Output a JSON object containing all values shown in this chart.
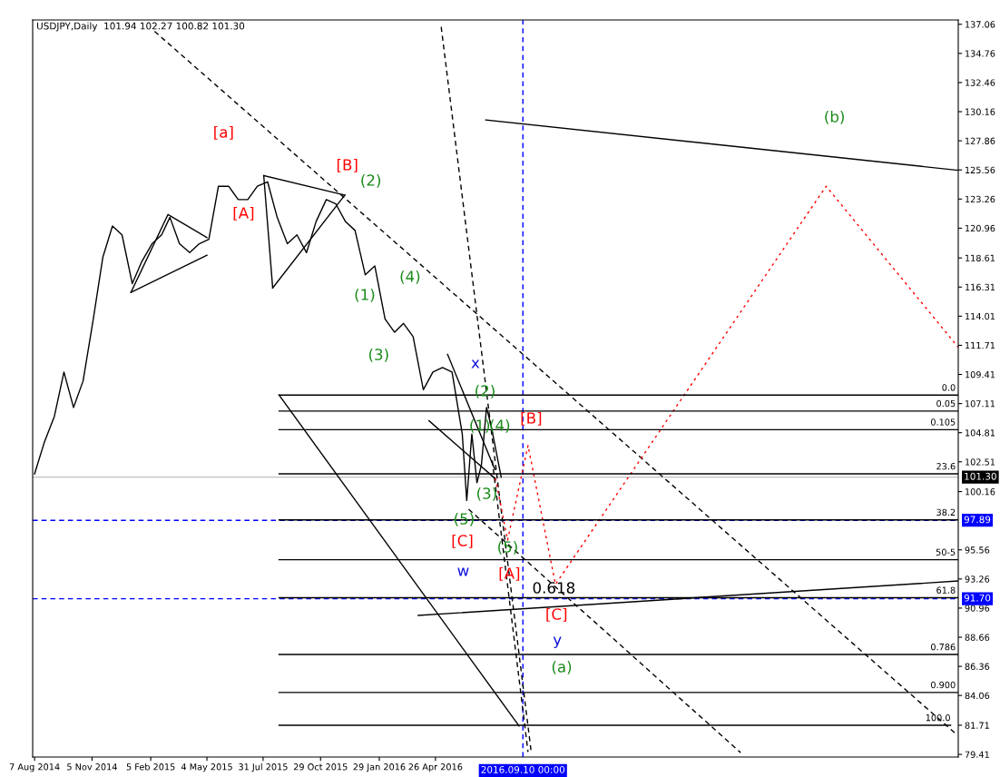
{
  "chart_data": {
    "type": "line",
    "title": "USDJPY,Daily  101.94 102.27 100.82 101.30",
    "xlim": [
      "2014-08-04",
      "2018-07-24"
    ],
    "ylim": [
      79.2,
      137.4
    ],
    "xticks": [
      {
        "value": "2014-08-07",
        "label": "7 Aug 2014"
      },
      {
        "value": "2014-11-05",
        "label": "5 Nov 2014"
      },
      {
        "value": "2015-02-05",
        "label": "5 Feb 2015"
      },
      {
        "value": "2015-05-04",
        "label": "4 May 2015"
      },
      {
        "value": "2015-07-31",
        "label": "31 Jul 2015"
      },
      {
        "value": "2015-10-29",
        "label": "29 Oct 2015"
      },
      {
        "value": "2016-01-29",
        "label": "29 Jan 2016"
      },
      {
        "value": "2016-04-26",
        "label": "26 Apr 2016"
      }
    ],
    "yticks": [
      137.06,
      134.76,
      132.46,
      130.16,
      127.86,
      125.56,
      123.26,
      120.96,
      118.61,
      116.31,
      114.01,
      111.71,
      109.41,
      107.11,
      104.81,
      102.51,
      100.16,
      95.56,
      93.26,
      90.96,
      88.66,
      86.36,
      84.06,
      81.71,
      79.41
    ],
    "grid": false,
    "legend": false,
    "series": [
      {
        "color": "#000000",
        "line_style": "solid",
        "x": [
          "2014-08-07",
          "2014-08-22",
          "2014-09-07",
          "2014-09-22",
          "2014-10-07",
          "2014-10-22",
          "2014-11-07",
          "2014-11-22",
          "2014-12-07",
          "2014-12-22",
          "2015-01-07",
          "2015-01-22",
          "2015-02-07",
          "2015-02-22",
          "2015-03-07",
          "2015-03-22",
          "2015-04-07",
          "2015-04-22",
          "2015-05-07",
          "2015-05-22",
          "2015-06-07",
          "2015-06-22",
          "2015-07-07",
          "2015-07-22",
          "2015-08-07",
          "2015-08-22",
          "2015-09-07",
          "2015-09-22",
          "2015-10-07",
          "2015-10-22",
          "2015-11-07",
          "2015-11-22",
          "2015-12-07",
          "2015-12-22",
          "2016-01-07",
          "2016-01-22",
          "2016-02-07",
          "2016-02-22",
          "2016-03-07",
          "2016-03-22",
          "2016-04-07",
          "2016-04-22",
          "2016-05-07",
          "2016-05-22",
          "2016-06-07",
          "2016-06-14",
          "2016-06-22",
          "2016-06-30",
          "2016-07-07",
          "2016-07-15",
          "2016-07-22",
          "2016-08-07"
        ],
        "values": [
          101.56,
          104.01,
          106.1,
          109.6,
          106.8,
          108.9,
          113.79,
          118.68,
          121.13,
          120.43,
          116.58,
          118.33,
          119.73,
          120.43,
          121.82,
          119.73,
          119.03,
          119.73,
          120.08,
          124.27,
          124.27,
          123.22,
          123.22,
          124.27,
          124.62,
          121.82,
          119.73,
          120.43,
          119.03,
          121.48,
          123.22,
          122.87,
          121.48,
          120.78,
          117.28,
          117.98,
          113.79,
          112.74,
          113.44,
          112.39,
          108.2,
          109.6,
          109.95,
          109.6,
          104.71,
          99.46,
          104.71,
          100.86,
          102.26,
          106.8,
          105.4,
          101.3
        ]
      },
      {
        "color": "#000000",
        "line_style": "dashed",
        "x": [
          "2015-02-11",
          "2018-07-19"
        ],
        "values": [
          136.5,
          81.09
        ]
      },
      {
        "color": "#000000",
        "line_style": "dashed",
        "x": [
          "2016-05-05",
          "2016-09-23"
        ],
        "values": [
          136.85,
          79.6
        ]
      },
      {
        "color": "#000000",
        "line_style": "dashed",
        "x": [
          "2016-07-24",
          "2016-09-18"
        ],
        "values": [
          102.61,
          79.6
        ]
      },
      {
        "color": "#000000",
        "line_style": "dashed",
        "x": [
          "2016-06-17",
          "2017-08-17"
        ],
        "values": [
          98.77,
          79.55
        ]
      },
      {
        "color": "#000000",
        "line_style": "solid",
        "x": [
          "2016-07-14",
          "2018-07-24"
        ],
        "values": [
          129.51,
          125.53
        ]
      },
      {
        "color": "#000000",
        "line_style": "solid",
        "x": [
          "2015-08-25",
          "2016-09-04"
        ],
        "values": [
          107.78,
          81.65
        ]
      },
      {
        "color": "#000000",
        "line_style": "solid",
        "x": [
          "2016-03-30",
          "2018-07-24"
        ],
        "values": [
          90.38,
          93.1
        ]
      },
      {
        "color": "#000000",
        "line_style": "solid",
        "x": [
          "2015-01-05",
          "2015-03-04",
          "2015-05-04"
        ],
        "values": [
          115.89,
          122.04,
          120.22
        ]
      },
      {
        "color": "#000000",
        "line_style": "solid",
        "x": [
          "2015-01-05",
          "2015-05-04"
        ],
        "values": [
          115.89,
          118.82
        ]
      },
      {
        "color": "#000000",
        "line_style": "solid",
        "x": [
          "2015-08-01",
          "2015-12-06"
        ],
        "values": [
          125.11,
          123.57
        ]
      },
      {
        "color": "#000000",
        "line_style": "solid",
        "x": [
          "2015-08-15",
          "2015-12-06"
        ],
        "values": [
          116.24,
          123.57
        ]
      },
      {
        "color": "#000000",
        "line_style": "solid",
        "x": [
          "2015-08-01",
          "2015-08-15"
        ],
        "values": [
          125.11,
          116.24
        ]
      },
      {
        "color": "#000000",
        "line_style": "solid",
        "x": [
          "2016-05-15",
          "2016-07-28"
        ],
        "values": [
          110.99,
          101.91
        ]
      },
      {
        "color": "#000000",
        "line_style": "solid",
        "x": [
          "2016-04-16",
          "2016-07-28"
        ],
        "values": [
          105.75,
          101.21
        ]
      },
      {
        "color": "#ff0000",
        "line_style": "dotted",
        "x": [
          "2016-07-29",
          "2016-08-17",
          "2016-09-18",
          "2016-10-31",
          "2017-12-29",
          "2018-07-24"
        ],
        "values": [
          101.21,
          96.32,
          103.8,
          92.83,
          124.27,
          111.55
        ]
      },
      {
        "color": "#000000",
        "line_style": "solid",
        "x": [
          "2015-08-25",
          "2018-07-24"
        ],
        "values": [
          107.78,
          107.78
        ]
      },
      {
        "color": "#000000",
        "line_style": "solid",
        "x": [
          "2015-08-25",
          "2018-07-24"
        ],
        "values": [
          106.52,
          106.52
        ]
      },
      {
        "color": "#000000",
        "line_style": "solid",
        "x": [
          "2015-08-25",
          "2018-07-24"
        ],
        "values": [
          105.05,
          105.05
        ]
      },
      {
        "color": "#000000",
        "line_style": "solid",
        "x": [
          "2015-08-25",
          "2018-07-24"
        ],
        "values": [
          101.56,
          101.56
        ]
      },
      {
        "color": "#000000",
        "line_style": "solid",
        "x": [
          "2015-08-25",
          "2018-07-24"
        ],
        "values": [
          97.93,
          97.93
        ]
      },
      {
        "color": "#000000",
        "line_style": "solid",
        "x": [
          "2015-08-25",
          "2018-07-24"
        ],
        "values": [
          94.78,
          94.78
        ]
      },
      {
        "color": "#000000",
        "line_style": "solid",
        "x": [
          "2015-08-25",
          "2018-07-24"
        ],
        "values": [
          91.78,
          91.78
        ]
      },
      {
        "color": "#000000",
        "line_style": "solid",
        "x": [
          "2015-08-25",
          "2018-07-24"
        ],
        "values": [
          87.3,
          87.3
        ]
      },
      {
        "color": "#000000",
        "line_style": "solid",
        "x": [
          "2015-08-25",
          "2018-07-24"
        ],
        "values": [
          84.3,
          84.3
        ]
      },
      {
        "color": "#000000",
        "line_style": "solid",
        "x": [
          "2015-08-25",
          "2018-07-12"
        ],
        "values": [
          81.71,
          81.71
        ]
      }
    ],
    "annotations": [
      {
        "text": "0.0",
        "x": "2018-07-20",
        "y": 107.78
      },
      {
        "text": "0.05",
        "x": "2018-07-20",
        "y": 106.52
      },
      {
        "text": "0.105",
        "x": "2018-07-20",
        "y": 105.05
      },
      {
        "text": "23.6",
        "x": "2018-07-20",
        "y": 101.56
      },
      {
        "text": "38.2",
        "x": "2018-07-20",
        "y": 97.93
      },
      {
        "text": "50-5",
        "x": "2018-07-20",
        "y": 94.78
      },
      {
        "text": "61.8",
        "x": "2018-07-20",
        "y": 91.78
      },
      {
        "text": "0.786",
        "x": "2018-07-20",
        "y": 87.3
      },
      {
        "text": "0.900",
        "x": "2018-07-20",
        "y": 84.3
      },
      {
        "text": "100.0",
        "x": "2018-07-12",
        "y": 81.71
      },
      "[a]",
      "[A]",
      "[B]",
      "[B]",
      "[C]",
      "[A]",
      "[C]",
      "(2)",
      "(4)",
      "(1)",
      "(3)",
      "(2)",
      "(1)",
      "(4)",
      "(3)",
      "(5)",
      "(5)",
      "(a)",
      "(b)",
      "x",
      "w",
      "y",
      "0.618"
    ],
    "ref_lines": [
      {
        "axis": "y",
        "value": 101.3,
        "label": "101.30",
        "color": "#c0c0c0",
        "line_style": "solid"
      },
      {
        "axis": "y",
        "value": 97.89,
        "label": "97.89",
        "color": "#0000ff",
        "line_style": "dashed"
      },
      {
        "axis": "y",
        "value": 91.7,
        "label": "91.70",
        "color": "#0000ff",
        "line_style": "dashed"
      },
      {
        "axis": "x",
        "value": "2016-09-10",
        "label": "2016.09.10 00:00",
        "color": "#0000ff",
        "line_style": "dashed"
      }
    ]
  }
}
